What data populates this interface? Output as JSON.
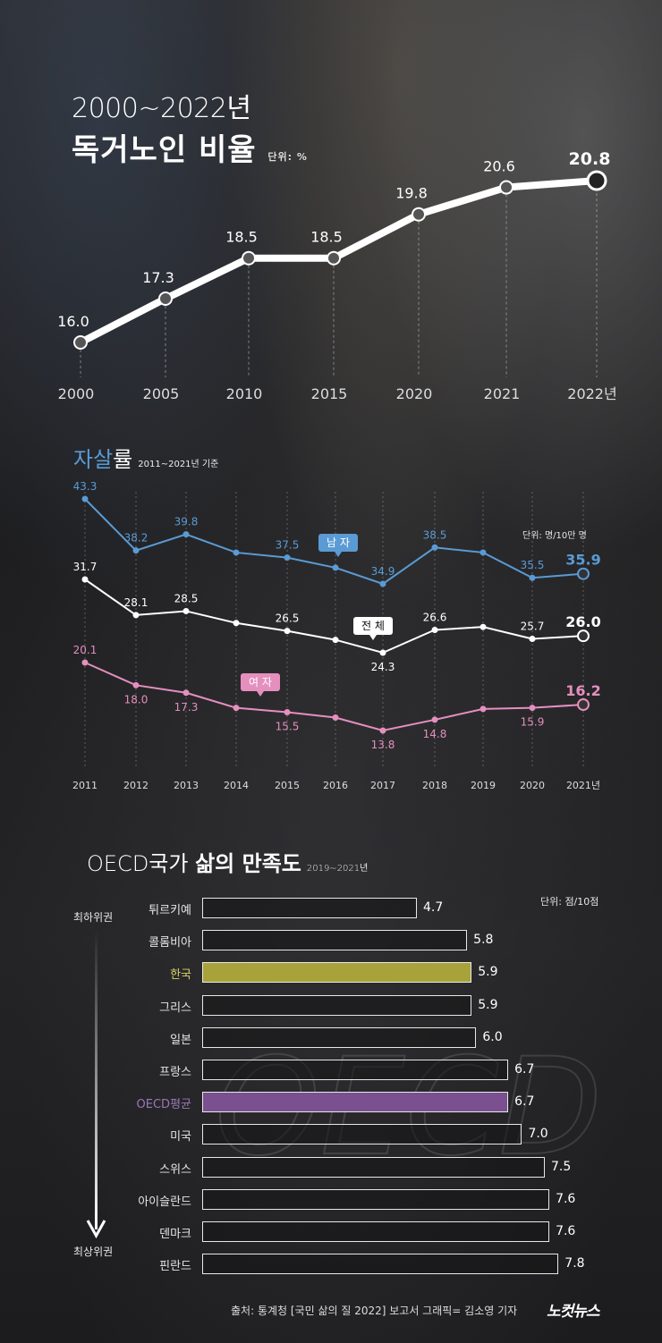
{
  "title_line1": "2000~2022년",
  "title_line2": "독거노인 비율",
  "title_unit": "단위: %",
  "section2": {
    "title_blue": "자살",
    "title_rest": "률",
    "subtitle": "2011~2021년 기준",
    "unit": "단위: 명/10만 명",
    "tag_male": "남 자",
    "tag_total": "전 체",
    "tag_female": "여 자"
  },
  "section3": {
    "title_prefix": "OECD국가 ",
    "title_bold": "삶의 만족도",
    "subtitle": "2019~2021년",
    "unit": "단위: 점/10점",
    "rank_top": "최하위권",
    "rank_bottom": "최상위권"
  },
  "source": "출처: 통계청 [국민 삶의 질 2022] 보고서   그래픽= 김소영 기자",
  "logo": "노컷뉴스",
  "colors": {
    "male": "#5a9bd5",
    "female": "#e58fbf",
    "total": "#ffffff",
    "korea_bar": "#a8a23a",
    "oecd_bar": "#7a5090",
    "korea_label": "#d9cf6a",
    "oecd_label": "#9a78b8"
  },
  "chart_data": [
    {
      "type": "line",
      "title": "2000~2022년 독거노인 비율",
      "ylabel": "단위: %",
      "categories": [
        "2000",
        "2005",
        "2010",
        "2015",
        "2020",
        "2021",
        "2022년"
      ],
      "values": [
        16.0,
        17.3,
        18.5,
        18.5,
        19.8,
        20.6,
        20.8
      ],
      "value_labels": [
        "16.0",
        "17.3",
        "18.5",
        "18.5",
        "19.8",
        "20.6",
        "20.8"
      ]
    },
    {
      "type": "line",
      "title": "자살률",
      "subtitle": "2011~2021년 기준",
      "ylabel": "단위: 명/10만 명",
      "categories": [
        "2011",
        "2012",
        "2013",
        "2014",
        "2015",
        "2016",
        "2017",
        "2018",
        "2019",
        "2020",
        "2021년"
      ],
      "series": [
        {
          "name": "남 자",
          "values": [
            43.3,
            38.2,
            39.8,
            38.0,
            37.5,
            36.5,
            34.9,
            38.5,
            38.0,
            35.5,
            35.9
          ],
          "labels": [
            "43.3",
            "38.2",
            "39.8",
            "",
            "37.5",
            "",
            "34.9",
            "38.5",
            "",
            "35.5",
            "35.9"
          ]
        },
        {
          "name": "전 체",
          "values": [
            31.7,
            28.1,
            28.5,
            27.3,
            26.5,
            25.6,
            24.3,
            26.6,
            26.9,
            25.7,
            26.0
          ],
          "labels": [
            "31.7",
            "28.1",
            "28.5",
            "",
            "26.5",
            "",
            "24.3",
            "26.6",
            "",
            "25.7",
            "26.0"
          ]
        },
        {
          "name": "여 자",
          "values": [
            20.1,
            18.0,
            17.3,
            15.9,
            15.5,
            15.0,
            13.8,
            14.8,
            15.8,
            15.9,
            16.2
          ],
          "labels": [
            "20.1",
            "18.0",
            "17.3",
            "",
            "15.5",
            "",
            "13.8",
            "14.8",
            "",
            "15.9",
            "16.2"
          ]
        }
      ]
    },
    {
      "type": "bar",
      "orientation": "horizontal",
      "title": "OECD국가 삶의 만족도",
      "subtitle": "2019~2021년",
      "xlabel": "단위: 점/10점",
      "categories": [
        "튀르키예",
        "콜롬비아",
        "한국",
        "그리스",
        "일본",
        "프랑스",
        "OECD평균",
        "미국",
        "스위스",
        "아이슬란드",
        "덴마크",
        "핀란드"
      ],
      "values": [
        4.7,
        5.8,
        5.9,
        5.9,
        6.0,
        6.7,
        6.7,
        7.0,
        7.5,
        7.6,
        7.6,
        7.8
      ],
      "value_labels": [
        "4.7",
        "5.8",
        "5.9",
        "5.9",
        "6.0",
        "6.7",
        "6.7",
        "7.0",
        "7.5",
        "7.6",
        "7.6",
        "7.8"
      ],
      "highlight": {
        "한국": "korea_bar",
        "OECD평균": "oecd_bar"
      }
    }
  ]
}
